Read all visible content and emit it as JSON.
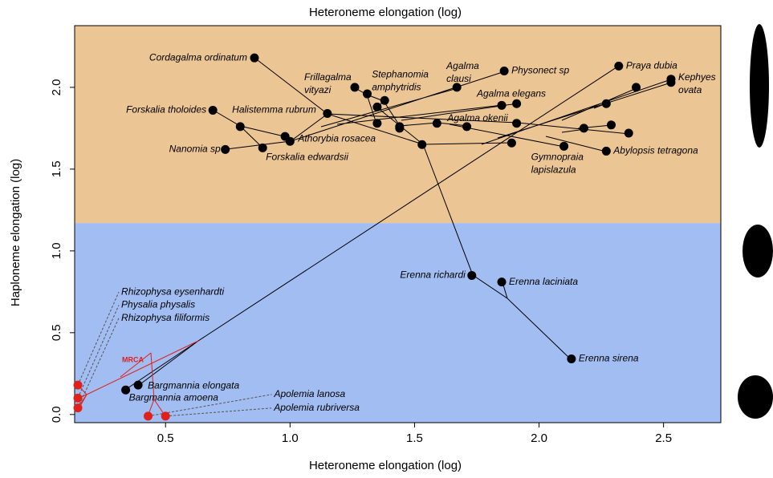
{
  "chart_data": {
    "type": "scatter",
    "title": "Heteroneme elongation (log)",
    "xlabel": "Heteroneme elongation (log)",
    "ylabel": "Haploneme elongation (log)",
    "annotation": "MRCA",
    "xlim": [
      0.135,
      2.73
    ],
    "ylim": [
      -0.05,
      2.377
    ],
    "xticks": [
      0.5,
      {
        "value": 1,
        "label": "1.0"
      },
      1.5,
      {
        "value": 2,
        "label": "2.0"
      },
      2.5
    ],
    "yticks": [
      {
        "value": 0,
        "label": "0.0"
      },
      0.5,
      {
        "value": 1,
        "label": "1.0"
      },
      1.5,
      {
        "value": 2,
        "label": "2.0"
      }
    ],
    "split_y": 1.17,
    "upper_color": "#ecc594",
    "lower_color": "#a1bdf2",
    "series": [
      {
        "color": "#000000",
        "x": [
          0.857,
          1.86,
          2.32,
          2.53,
          2.53,
          2.39,
          1.67,
          1.26,
          1.31,
          1.38,
          1.35,
          0.69,
          1.15,
          1.85,
          1.91,
          2.27,
          0.8,
          1.35,
          1.44,
          1.44,
          1.59,
          1.71,
          1.91,
          2.18,
          2.29,
          2.36,
          0.98,
          1.0,
          0.74,
          0.89,
          1.53,
          1.89,
          2.1,
          2.27,
          1.73,
          1.85,
          2.13,
          0.39,
          0.34
        ],
        "y": [
          2.18,
          2.1,
          2.13,
          2.05,
          2.03,
          2.0,
          2.0,
          2.0,
          1.96,
          1.92,
          1.88,
          1.86,
          1.84,
          1.89,
          1.9,
          1.9,
          1.76,
          1.78,
          1.76,
          1.75,
          1.78,
          1.76,
          1.78,
          1.75,
          1.77,
          1.72,
          1.7,
          1.67,
          1.62,
          1.63,
          1.65,
          1.66,
          1.64,
          1.61,
          0.85,
          0.81,
          0.34,
          0.18,
          0.15
        ],
        "labels": [
          [
            "Cordagalma ordinatum"
          ],
          [
            "Physonect sp"
          ],
          [
            "Praya dubia"
          ],
          [
            "Kephyes",
            "ovata"
          ],
          null,
          null,
          [
            "Agalma",
            "clausi"
          ],
          [
            "Frillagalma",
            "vityazi"
          ],
          null,
          [
            "Stephanomia",
            "amphytridis"
          ],
          null,
          [
            "Forskalia tholoides"
          ],
          [
            "Halistemma rubrum"
          ],
          [
            "Agalma elegans"
          ],
          null,
          null,
          null,
          null,
          null,
          null,
          [
            "Agalma okenii"
          ],
          null,
          null,
          null,
          null,
          null,
          null,
          [
            "Athorybia rosacea"
          ],
          [
            "Nanomia sp"
          ],
          [
            "Forskalia edwardsii"
          ],
          null,
          null,
          [
            "Gymnopraia",
            "lapislazula"
          ],
          [
            "Abylopsis tetragona"
          ],
          [
            "Erenna richardi"
          ],
          [
            "Erenna laciniata"
          ],
          [
            "Erenna sirena"
          ],
          [
            "Bargmannia elongata"
          ],
          [
            "Bargmannia amoena"
          ]
        ]
      },
      {
        "color": "#e0201b",
        "x": [
          0.43,
          0.5,
          0.148,
          0.148,
          0.148
        ],
        "y": [
          -0.01,
          -0.01,
          0.18,
          0.1,
          0.04
        ],
        "labels": [
          [
            "Apolemia lanosa"
          ],
          [
            "Apolemia rubriversa"
          ],
          [
            "Rhizophysa eysenhardti"
          ],
          [
            "Physalia physalis"
          ],
          [
            "Rhizophysa filiformis"
          ]
        ]
      }
    ]
  }
}
